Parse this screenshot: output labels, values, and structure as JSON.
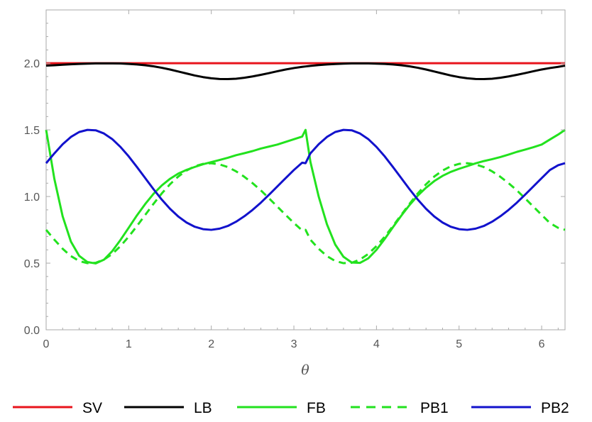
{
  "chart_data": {
    "type": "line",
    "title": "",
    "xlabel": "θ",
    "ylabel": "",
    "xlim": [
      0,
      6.283
    ],
    "ylim": [
      0,
      2.4
    ],
    "x_ticks": [
      "0",
      "1",
      "2",
      "3",
      "4",
      "5",
      "6"
    ],
    "y_ticks": [
      "0.0",
      "0.5",
      "1.0",
      "1.5",
      "2.0"
    ],
    "grid": false,
    "legend_position": "bottom",
    "x": [
      0,
      0.1,
      0.2,
      0.3,
      0.4,
      0.5,
      0.6,
      0.7,
      0.8,
      0.9,
      1.0,
      1.1,
      1.2,
      1.3,
      1.4,
      1.5,
      1.6,
      1.7,
      1.8,
      1.9,
      2.0,
      2.1,
      2.2,
      2.3,
      2.4,
      2.5,
      2.6,
      2.7,
      2.8,
      2.9,
      3.0,
      3.1,
      3.141,
      3.2,
      3.3,
      3.4,
      3.5,
      3.6,
      3.7,
      3.8,
      3.9,
      4.0,
      4.1,
      4.2,
      4.3,
      4.4,
      4.5,
      4.6,
      4.7,
      4.8,
      4.9,
      5.0,
      5.1,
      5.2,
      5.3,
      5.4,
      5.5,
      5.6,
      5.7,
      5.8,
      5.9,
      6.0,
      6.1,
      6.2,
      6.283
    ],
    "series": [
      {
        "name": "SV",
        "color": "#e8141c",
        "dash": "solid",
        "values": [
          2.0,
          2.0,
          2.0,
          2.0,
          2.0,
          2.0,
          2.0,
          2.0,
          2.0,
          2.0,
          2.0,
          2.0,
          2.0,
          2.0,
          2.0,
          2.0,
          2.0,
          2.0,
          2.0,
          2.0,
          2.0,
          2.0,
          2.0,
          2.0,
          2.0,
          2.0,
          2.0,
          2.0,
          2.0,
          2.0,
          2.0,
          2.0,
          2.0,
          2.0,
          2.0,
          2.0,
          2.0,
          2.0,
          2.0,
          2.0,
          2.0,
          2.0,
          2.0,
          2.0,
          2.0,
          2.0,
          2.0,
          2.0,
          2.0,
          2.0,
          2.0,
          2.0,
          2.0,
          2.0,
          2.0,
          2.0,
          2.0,
          2.0,
          2.0,
          2.0,
          2.0,
          2.0,
          2.0,
          2.0,
          2.0
        ]
      },
      {
        "name": "LB",
        "color": "#000000",
        "dash": "solid",
        "values": [
          1.982,
          1.985,
          1.989,
          1.992,
          1.995,
          1.997,
          1.999,
          1.999,
          1.999,
          1.998,
          1.995,
          1.991,
          1.985,
          1.977,
          1.966,
          1.953,
          1.938,
          1.923,
          1.908,
          1.896,
          1.887,
          1.882,
          1.881,
          1.884,
          1.891,
          1.901,
          1.913,
          1.926,
          1.94,
          1.953,
          1.964,
          1.973,
          1.976,
          1.98,
          1.986,
          1.991,
          1.994,
          1.997,
          1.999,
          1.999,
          1.999,
          1.997,
          1.995,
          1.991,
          1.985,
          1.977,
          1.966,
          1.953,
          1.938,
          1.923,
          1.908,
          1.896,
          1.887,
          1.882,
          1.881,
          1.884,
          1.891,
          1.901,
          1.913,
          1.926,
          1.94,
          1.953,
          1.964,
          1.973,
          1.982
        ]
      },
      {
        "name": "FB",
        "color": "#22e21e",
        "dash": "solid",
        "values": [
          1.5,
          1.131,
          0.851,
          0.662,
          0.555,
          0.508,
          0.498,
          0.526,
          0.59,
          0.674,
          0.766,
          0.859,
          0.944,
          1.02,
          1.083,
          1.133,
          1.172,
          1.2,
          1.222,
          1.242,
          1.258,
          1.274,
          1.291,
          1.31,
          1.325,
          1.341,
          1.36,
          1.375,
          1.39,
          1.41,
          1.43,
          1.45,
          1.5,
          1.26,
          1.0,
          0.792,
          0.64,
          0.548,
          0.505,
          0.502,
          0.536,
          0.6,
          0.682,
          0.77,
          0.856,
          0.936,
          1.007,
          1.066,
          1.116,
          1.155,
          1.185,
          1.208,
          1.228,
          1.249,
          1.266,
          1.28,
          1.296,
          1.315,
          1.335,
          1.352,
          1.37,
          1.39,
          1.428,
          1.465,
          1.5
        ]
      },
      {
        "name": "PB1",
        "color": "#22e21e",
        "dash": "dashed",
        "values": [
          0.75,
          0.676,
          0.608,
          0.553,
          0.516,
          0.5,
          0.503,
          0.527,
          0.569,
          0.628,
          0.699,
          0.779,
          0.862,
          0.945,
          1.023,
          1.092,
          1.15,
          1.195,
          1.227,
          1.245,
          1.25,
          1.241,
          1.221,
          1.189,
          1.148,
          1.1,
          1.046,
          0.986,
          0.924,
          0.862,
          0.801,
          0.746,
          0.75,
          0.676,
          0.608,
          0.553,
          0.516,
          0.5,
          0.503,
          0.527,
          0.569,
          0.628,
          0.699,
          0.779,
          0.862,
          0.945,
          1.023,
          1.092,
          1.15,
          1.195,
          1.227,
          1.245,
          1.25,
          1.241,
          1.221,
          1.189,
          1.148,
          1.1,
          1.046,
          0.986,
          0.924,
          0.862,
          0.801,
          0.765,
          0.75
        ]
      },
      {
        "name": "PB2",
        "color": "#1212cc",
        "dash": "solid",
        "values": [
          1.25,
          1.324,
          1.392,
          1.447,
          1.484,
          1.5,
          1.497,
          1.473,
          1.431,
          1.372,
          1.301,
          1.221,
          1.138,
          1.055,
          0.977,
          0.908,
          0.85,
          0.805,
          0.773,
          0.755,
          0.75,
          0.759,
          0.779,
          0.811,
          0.852,
          0.9,
          0.954,
          1.014,
          1.076,
          1.138,
          1.199,
          1.254,
          1.25,
          1.324,
          1.392,
          1.447,
          1.484,
          1.5,
          1.497,
          1.473,
          1.431,
          1.372,
          1.301,
          1.221,
          1.138,
          1.055,
          0.977,
          0.908,
          0.85,
          0.805,
          0.773,
          0.755,
          0.75,
          0.759,
          0.779,
          0.811,
          0.852,
          0.9,
          0.954,
          1.014,
          1.076,
          1.138,
          1.199,
          1.235,
          1.25
        ]
      }
    ]
  }
}
